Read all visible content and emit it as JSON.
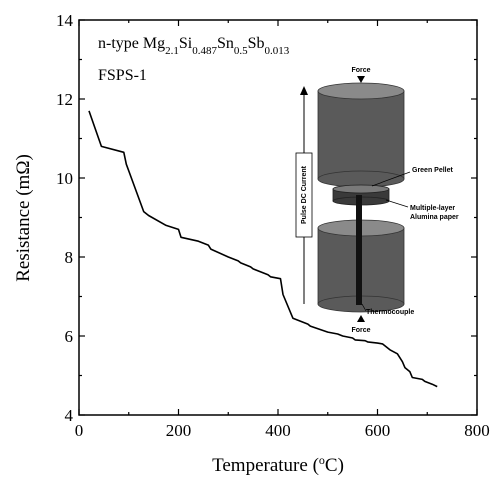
{
  "chart_data": {
    "type": "line",
    "xlabel": "Temperature (",
    "xlabel_sup": "o",
    "xlabel_unit": "C)",
    "ylabel": "Resistance (mΩ)",
    "xlim": [
      0,
      800
    ],
    "ylim": [
      4,
      14
    ],
    "xticks": [
      "0",
      "200",
      "400",
      "600",
      "800"
    ],
    "yticks": [
      "4",
      "6",
      "8",
      "10",
      "12",
      "14"
    ],
    "grid": false,
    "annotations": {
      "line1_prefix": "n-type  Mg",
      "sub1": "2.1",
      "mid1": "Si",
      "sub2": "0.487",
      "mid2": "Sn",
      "sub3": "0.5",
      "mid3": "Sb",
      "sub4": "0.013",
      "line2": "FSPS-1"
    },
    "inset_labels": {
      "force_top": "Force",
      "force_bottom": "Force",
      "pulse": "Pulse DC Current",
      "green_pellet": "Green Pellet",
      "multilayer": "Multiple-layer",
      "alumina": "Alumina paper",
      "thermocouple": "Thermocouple"
    },
    "series": [
      {
        "x": [
          20,
          45,
          90,
          95,
          130,
          140,
          175,
          200,
          205,
          240,
          260,
          265,
          300,
          320,
          325,
          345,
          350,
          380,
          385,
          405,
          410,
          430,
          460,
          465,
          500,
          520,
          530,
          550,
          555,
          575,
          580,
          600,
          610,
          625,
          640,
          650,
          655,
          665,
          670,
          690,
          695,
          710,
          720
        ],
        "y": [
          11.7,
          10.8,
          10.65,
          10.35,
          9.15,
          9.05,
          8.8,
          8.7,
          8.5,
          8.4,
          8.3,
          8.2,
          8.0,
          7.9,
          7.85,
          7.75,
          7.7,
          7.55,
          7.5,
          7.45,
          7.05,
          6.45,
          6.3,
          6.25,
          6.1,
          6.05,
          6.0,
          5.95,
          5.9,
          5.88,
          5.85,
          5.82,
          5.8,
          5.65,
          5.55,
          5.35,
          5.2,
          5.1,
          4.95,
          4.9,
          4.85,
          4.78,
          4.72
        ]
      }
    ]
  },
  "colors": {
    "line": "#000000",
    "cylinder": "#5a5a5a",
    "cylinder_top": "#8a8a8a",
    "pellet": "#3a3a3a"
  }
}
